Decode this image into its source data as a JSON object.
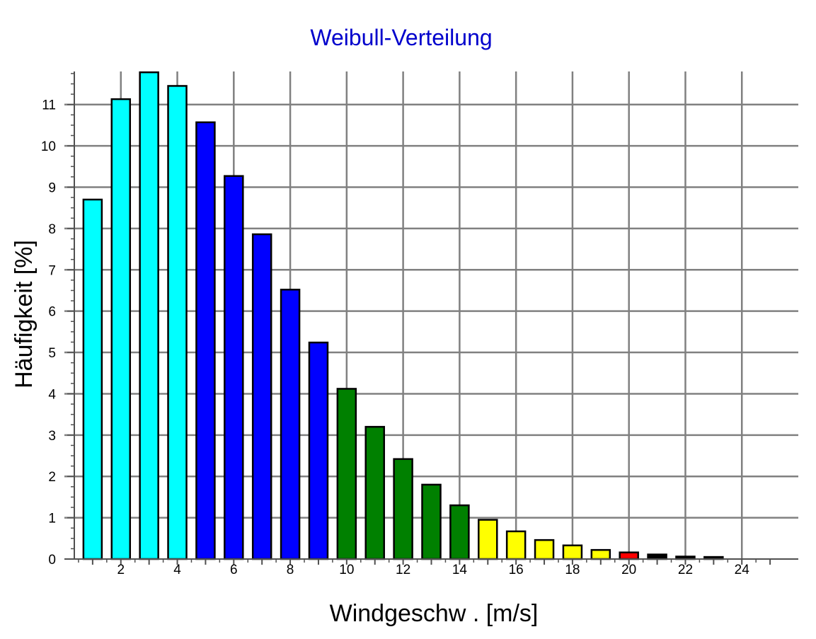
{
  "chart_data": {
    "type": "bar",
    "title": "Weibull-Verteilung",
    "xlabel": "Windgeschw . [m/s]",
    "ylabel": "Häufigkeit [%]",
    "xlim": [
      0,
      26
    ],
    "ylim": [
      0,
      11.8
    ],
    "x": [
      1,
      2,
      3,
      4,
      5,
      6,
      7,
      8,
      9,
      10,
      11,
      12,
      13,
      14,
      15,
      16,
      17,
      18,
      19,
      20,
      21,
      22,
      23
    ],
    "values": [
      8.7,
      11.13,
      11.78,
      11.45,
      10.57,
      9.27,
      7.86,
      6.52,
      5.24,
      4.12,
      3.2,
      2.42,
      1.8,
      1.3,
      0.95,
      0.67,
      0.46,
      0.33,
      0.22,
      0.16,
      0.11,
      0.06,
      0.05
    ],
    "bar_colors": [
      "#00ffff",
      "#00ffff",
      "#00ffff",
      "#00ffff",
      "#0000ff",
      "#0000ff",
      "#0000ff",
      "#0000ff",
      "#0000ff",
      "#008000",
      "#008000",
      "#008000",
      "#008000",
      "#008000",
      "#ffff00",
      "#ffff00",
      "#ffff00",
      "#ffff00",
      "#ffff00",
      "#ff0000",
      "#000000",
      "#000000",
      "#000000"
    ],
    "x_ticks": [
      "2",
      "4",
      "6",
      "8",
      "10",
      "12",
      "14",
      "16",
      "18",
      "20",
      "22",
      "24"
    ],
    "y_ticks": [
      "0",
      "1",
      "2",
      "3",
      "4",
      "5",
      "6",
      "7",
      "8",
      "9",
      "10",
      "11"
    ],
    "grid": true,
    "title_color": "#0000cc",
    "grid_color": "#808080"
  }
}
